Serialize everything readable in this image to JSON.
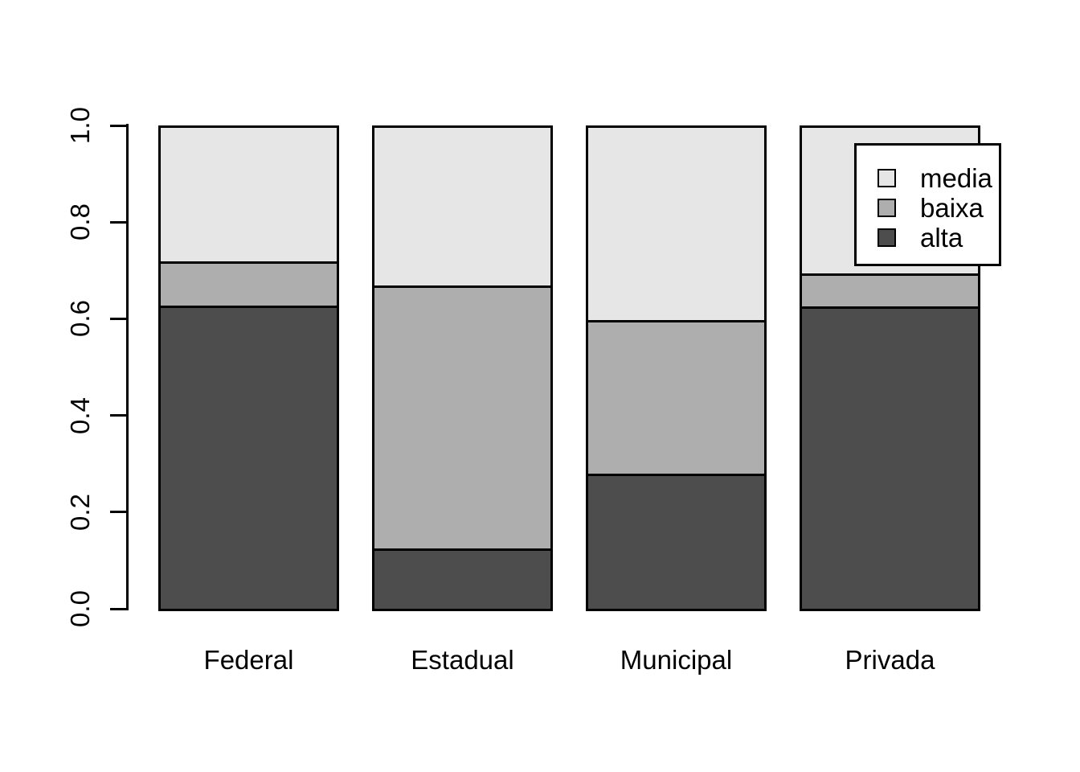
{
  "chart_data": {
    "type": "bar",
    "stacked": true,
    "title": "",
    "xlabel": "",
    "ylabel": "",
    "categories": [
      "Federal",
      "Estadual",
      "Municipal",
      "Privada"
    ],
    "series": [
      {
        "name": "alta",
        "color": "#4D4D4D",
        "values": [
          0.632,
          0.121,
          0.278,
          0.63
        ]
      },
      {
        "name": "baixa",
        "color": "#AEAEAE",
        "values": [
          0.088,
          0.548,
          0.318,
          0.064
        ]
      },
      {
        "name": "media",
        "color": "#E6E6E6",
        "values": [
          0.28,
          0.331,
          0.404,
          0.306
        ]
      }
    ],
    "ylim": [
      0,
      1
    ],
    "y_ticks": [
      {
        "v": 0.0,
        "label": "0.0"
      },
      {
        "v": 0.2,
        "label": "0.2"
      },
      {
        "v": 0.4,
        "label": "0.4"
      },
      {
        "v": 0.6,
        "label": "0.6"
      },
      {
        "v": 0.8,
        "label": "0.8"
      },
      {
        "v": 1.0,
        "label": "1.0"
      }
    ],
    "grid": false,
    "legend": {
      "position": "top-right",
      "entries": [
        {
          "label": "media",
          "color": "#E6E6E6"
        },
        {
          "label": "baixa",
          "color": "#AEAEAE"
        },
        {
          "label": "alta",
          "color": "#4D4D4D"
        }
      ]
    },
    "colors": {
      "background": "#FFFFFF",
      "axis": "#000000",
      "text": "#000000",
      "bar_border": "#000000"
    }
  }
}
